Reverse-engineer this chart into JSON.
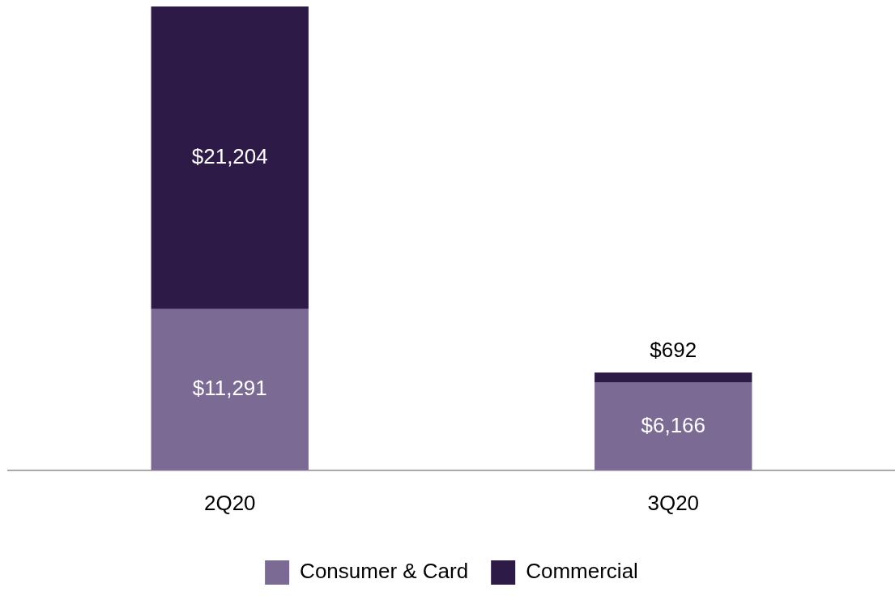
{
  "chart_data": {
    "type": "bar",
    "stacked": true,
    "categories": [
      "2Q20",
      "3Q20"
    ],
    "series": [
      {
        "name": "Consumer & Card",
        "color": "#7b6a93",
        "values": [
          11291,
          6166
        ],
        "value_labels": [
          "$11,291",
          "$6,166"
        ]
      },
      {
        "name": "Commercial",
        "color": "#2e1a47",
        "values": [
          21204,
          692
        ],
        "value_labels": [
          "$21,204",
          "$692"
        ]
      }
    ],
    "legend": "bottom",
    "grid": false,
    "tick_labels": "x"
  }
}
